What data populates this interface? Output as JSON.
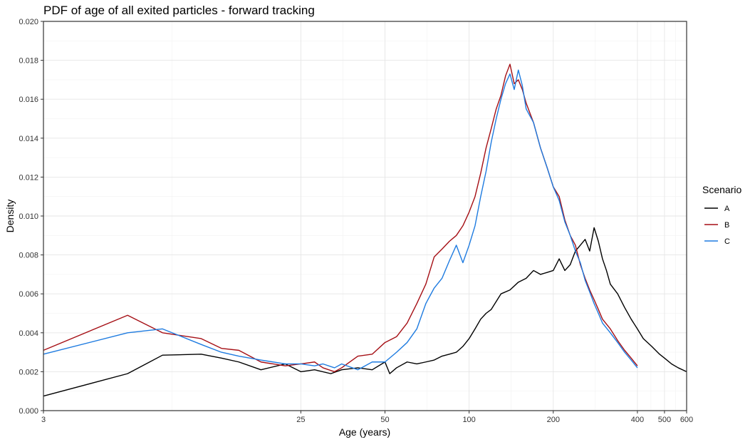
{
  "chart_data": {
    "type": "line",
    "title": "PDF of age of all exited particles - forward tracking",
    "xlabel": "Age (years)",
    "ylabel": "Density",
    "xscale": "log",
    "xlim": [
      3,
      600
    ],
    "ylim": [
      0,
      0.02
    ],
    "xticks": [
      3,
      25,
      50,
      100,
      200,
      400,
      500,
      600
    ],
    "yticks": [
      0,
      0.002,
      0.004,
      0.006,
      0.008,
      0.01,
      0.012,
      0.014,
      0.016,
      0.018,
      0.02
    ],
    "ytick_labels": [
      "0.000",
      "0.002",
      "0.004",
      "0.006",
      "0.008",
      "0.010",
      "0.012",
      "0.014",
      "0.016",
      "0.018",
      "0.020"
    ],
    "grid": true,
    "legend": {
      "title": "Scenario",
      "position": "right"
    },
    "series": [
      {
        "name": "A",
        "color": "#000000",
        "x": [
          3,
          6,
          8,
          11,
          13,
          15,
          18,
          22,
          25,
          28,
          32,
          35,
          40,
          45,
          50,
          52,
          55,
          60,
          65,
          70,
          75,
          80,
          85,
          90,
          95,
          100,
          105,
          110,
          115,
          120,
          130,
          140,
          150,
          160,
          170,
          180,
          190,
          200,
          210,
          220,
          230,
          240,
          250,
          260,
          270,
          280,
          290,
          300,
          310,
          320,
          340,
          360,
          380,
          400,
          420,
          450,
          480,
          500,
          530,
          560,
          600
        ],
        "y": [
          0.00075,
          0.0019,
          0.00285,
          0.0029,
          0.0027,
          0.0025,
          0.0021,
          0.0024,
          0.002,
          0.0021,
          0.0019,
          0.0021,
          0.0022,
          0.0021,
          0.0025,
          0.0019,
          0.0022,
          0.0025,
          0.0024,
          0.0025,
          0.0026,
          0.0028,
          0.0029,
          0.003,
          0.0033,
          0.0037,
          0.0042,
          0.0047,
          0.005,
          0.0052,
          0.006,
          0.0062,
          0.0066,
          0.0068,
          0.0072,
          0.007,
          0.0071,
          0.0072,
          0.0078,
          0.0072,
          0.0075,
          0.0082,
          0.0085,
          0.0088,
          0.0082,
          0.0094,
          0.0087,
          0.0078,
          0.0072,
          0.0065,
          0.006,
          0.0053,
          0.0047,
          0.0042,
          0.0037,
          0.0033,
          0.0029,
          0.0027,
          0.0024,
          0.0022,
          0.002
        ]
      },
      {
        "name": "B",
        "color": "#a50f15",
        "x": [
          3,
          6,
          8,
          11,
          13,
          15,
          18,
          22,
          25,
          28,
          30,
          33,
          35,
          40,
          45,
          50,
          55,
          60,
          65,
          70,
          75,
          80,
          85,
          90,
          95,
          100,
          105,
          110,
          115,
          120,
          125,
          130,
          135,
          140,
          145,
          150,
          155,
          160,
          170,
          180,
          190,
          200,
          210,
          220,
          230,
          240,
          250,
          260,
          270,
          280,
          290,
          300,
          320,
          340,
          360,
          380,
          400
        ],
        "y": [
          0.0031,
          0.0049,
          0.004,
          0.0037,
          0.0032,
          0.0031,
          0.0025,
          0.0023,
          0.0024,
          0.0025,
          0.0022,
          0.002,
          0.0022,
          0.0028,
          0.0029,
          0.0035,
          0.0038,
          0.0045,
          0.0055,
          0.0065,
          0.0079,
          0.0083,
          0.0087,
          0.009,
          0.0095,
          0.0102,
          0.011,
          0.0122,
          0.0135,
          0.0145,
          0.0155,
          0.0162,
          0.0172,
          0.0178,
          0.0168,
          0.017,
          0.0165,
          0.0158,
          0.0148,
          0.0135,
          0.0125,
          0.0115,
          0.011,
          0.0098,
          0.009,
          0.0085,
          0.0075,
          0.0068,
          0.0062,
          0.0057,
          0.0052,
          0.0047,
          0.0042,
          0.0036,
          0.0031,
          0.0027,
          0.0023
        ]
      },
      {
        "name": "C",
        "color": "#1e7be0",
        "x": [
          3,
          6,
          8,
          11,
          13,
          15,
          18,
          22,
          25,
          28,
          30,
          33,
          35,
          40,
          45,
          50,
          55,
          60,
          65,
          70,
          75,
          80,
          85,
          90,
          95,
          100,
          105,
          110,
          115,
          120,
          125,
          130,
          135,
          140,
          145,
          150,
          155,
          160,
          170,
          180,
          190,
          200,
          210,
          220,
          230,
          240,
          250,
          260,
          270,
          280,
          290,
          300,
          320,
          340,
          360,
          380,
          400
        ],
        "y": [
          0.0029,
          0.004,
          0.0042,
          0.0034,
          0.003,
          0.0028,
          0.0026,
          0.0024,
          0.0024,
          0.0023,
          0.0024,
          0.0022,
          0.0024,
          0.0021,
          0.0025,
          0.0025,
          0.003,
          0.0035,
          0.0042,
          0.0055,
          0.0063,
          0.0068,
          0.0077,
          0.0085,
          0.0076,
          0.0085,
          0.0095,
          0.011,
          0.0123,
          0.0138,
          0.015,
          0.016,
          0.0168,
          0.0173,
          0.0165,
          0.0175,
          0.0167,
          0.0155,
          0.0148,
          0.0135,
          0.0125,
          0.0115,
          0.0108,
          0.0097,
          0.009,
          0.0082,
          0.0076,
          0.0067,
          0.0061,
          0.0055,
          0.005,
          0.0045,
          0.004,
          0.0035,
          0.003,
          0.0026,
          0.0022
        ]
      }
    ]
  }
}
